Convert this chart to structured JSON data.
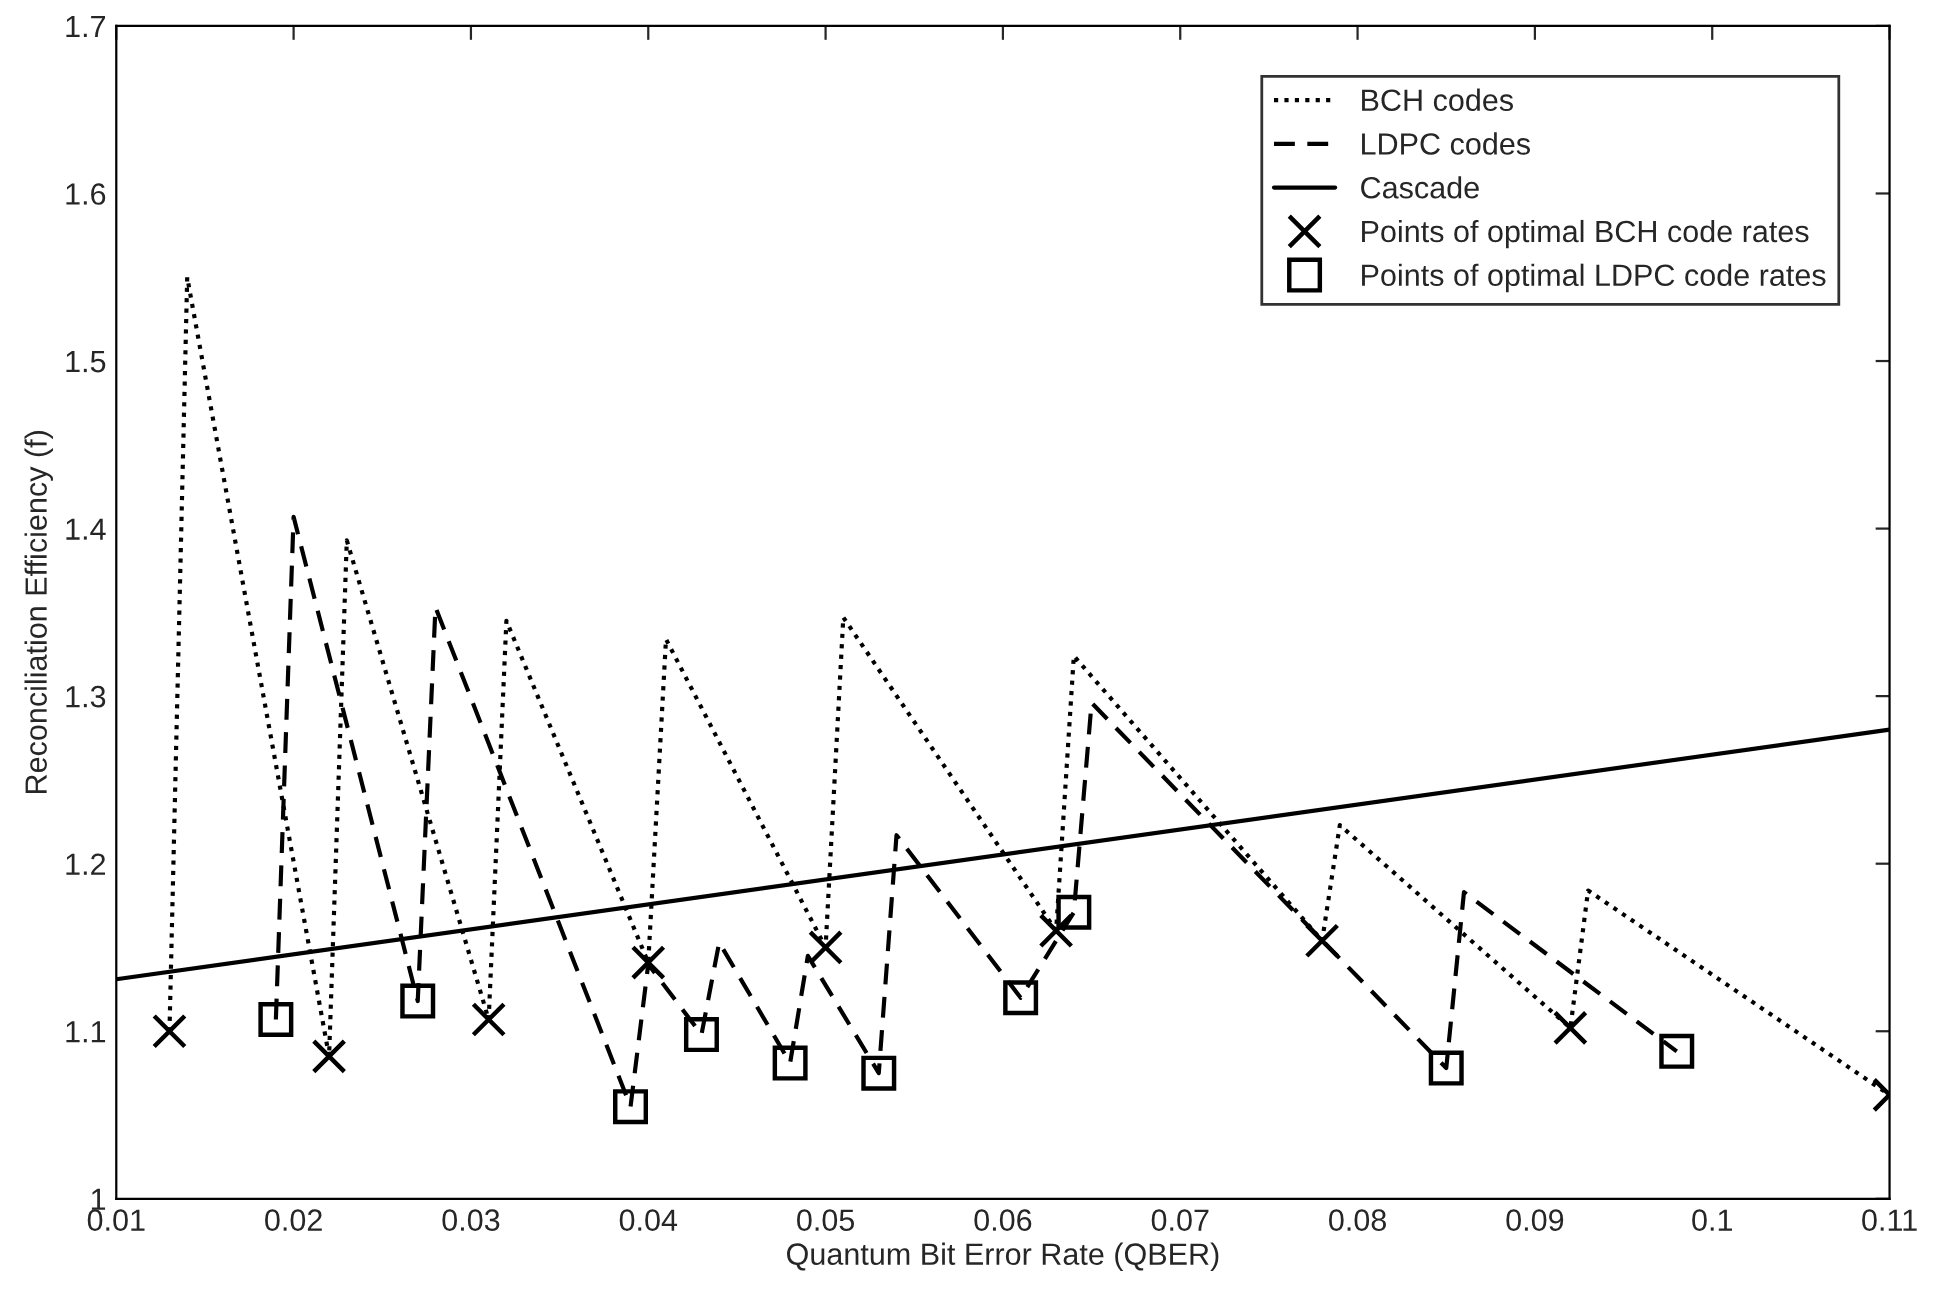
{
  "chart_data": {
    "type": "line",
    "xlabel": "Quantum Bit Error Rate (QBER)",
    "ylabel": "Reconciliation Efficiency (f)",
    "xlim": [
      0.01,
      0.11
    ],
    "xticks": [
      0.01,
      0.02,
      0.03,
      0.04,
      0.05,
      0.06,
      0.07,
      0.08,
      0.09,
      0.1,
      0.11
    ],
    "ylim": [
      1,
      1.7
    ],
    "yticks": [
      1,
      1.1,
      1.2,
      1.3,
      1.4,
      1.5,
      1.6,
      1.7
    ],
    "grid": false,
    "legend": "top right",
    "series": [
      {
        "name": "BCH codes",
        "line_style": "dotted",
        "marker": "none",
        "color": "#000000",
        "x": [
          0.013,
          0.014,
          0.022,
          0.023,
          0.031,
          0.032,
          0.04,
          0.041,
          0.05,
          0.051,
          0.063,
          0.064,
          0.078,
          0.079,
          0.092,
          0.093,
          0.11
        ],
        "values": [
          1.1,
          1.55,
          1.085,
          1.393,
          1.107,
          1.345,
          1.141,
          1.334,
          1.15,
          1.347,
          1.16,
          1.324,
          1.154,
          1.223,
          1.102,
          1.184,
          1.062
        ]
      },
      {
        "name": "LDPC codes",
        "line_style": "dashed",
        "marker": "none",
        "color": "#000000",
        "x": [
          0.019,
          0.02,
          0.027,
          0.028,
          0.039,
          0.04,
          0.043,
          0.044,
          0.048,
          0.049,
          0.053,
          0.054,
          0.061,
          0.064,
          0.065,
          0.085,
          0.086,
          0.098
        ],
        "values": [
          1.107,
          1.407,
          1.118,
          1.353,
          1.055,
          1.14,
          1.098,
          1.153,
          1.081,
          1.145,
          1.075,
          1.217,
          1.12,
          1.171,
          1.296,
          1.078,
          1.183,
          1.088
        ]
      },
      {
        "name": "Cascade",
        "line_style": "solid",
        "marker": "none",
        "color": "#000000",
        "x": [
          0.01,
          0.11
        ],
        "values": [
          1.131,
          1.28
        ]
      },
      {
        "name": "Points of optimal BCH code rates",
        "type": "scatter",
        "marker": "cross",
        "color": "#000000",
        "x": [
          0.013,
          0.022,
          0.031,
          0.04,
          0.05,
          0.063,
          0.078,
          0.092,
          0.11
        ],
        "values": [
          1.1,
          1.085,
          1.107,
          1.141,
          1.15,
          1.16,
          1.154,
          1.102,
          1.062
        ]
      },
      {
        "name": "Points of optimal LDPC code rates",
        "type": "scatter",
        "marker": "square",
        "color": "#000000",
        "x": [
          0.019,
          0.027,
          0.039,
          0.043,
          0.048,
          0.053,
          0.061,
          0.064,
          0.085,
          0.098
        ],
        "values": [
          1.107,
          1.118,
          1.055,
          1.098,
          1.081,
          1.075,
          1.12,
          1.171,
          1.078,
          1.088
        ]
      }
    ]
  }
}
